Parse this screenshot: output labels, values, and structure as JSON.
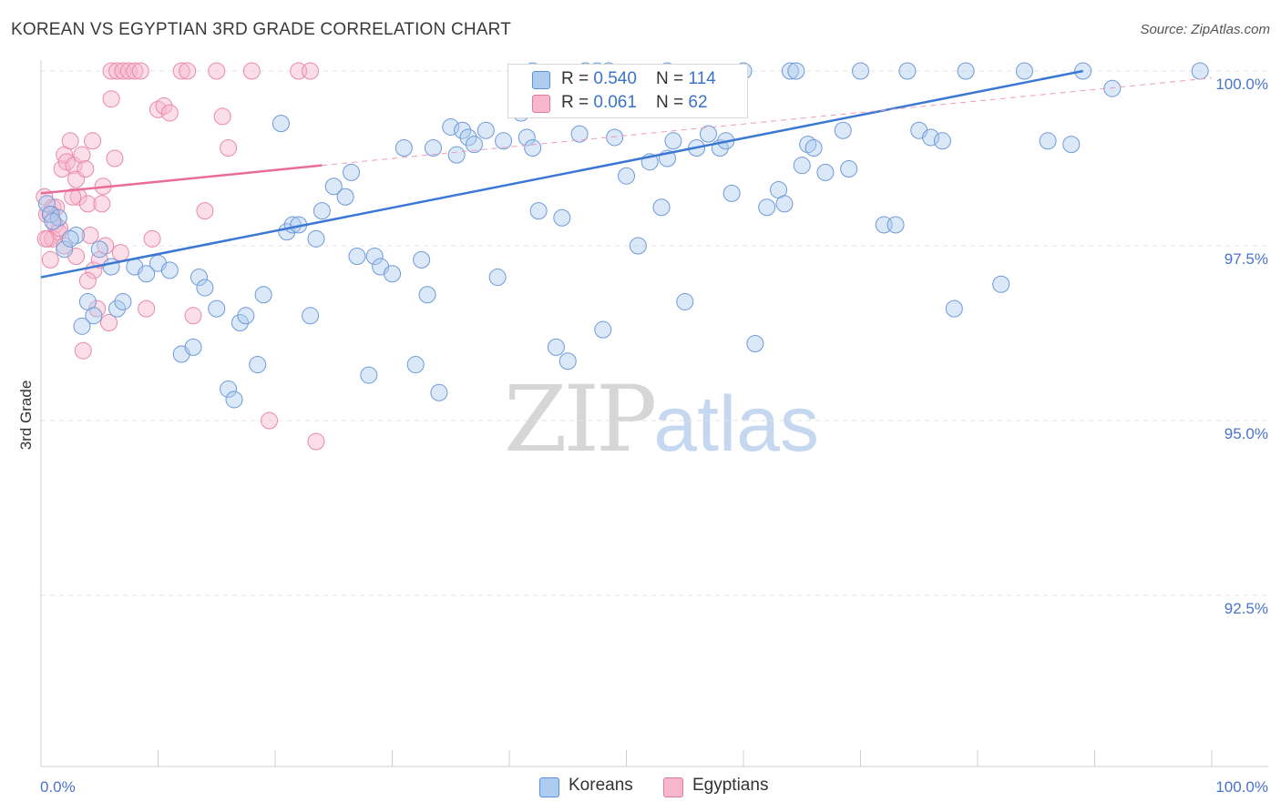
{
  "title": "KOREAN VS EGYPTIAN 3RD GRADE CORRELATION CHART",
  "source": "Source: ZipAtlas.com",
  "watermark": {
    "zip": "ZIP",
    "atlas": "atlas"
  },
  "legend_top": [
    {
      "r_label": "R = ",
      "r_value": "0.540",
      "n_label": "N = ",
      "n_value": "114",
      "color": "#aecbf0"
    },
    {
      "r_label": "R = ",
      "r_value": "0.061",
      "n_label": "N = ",
      "n_value": "62",
      "color": "#f7b6cc"
    }
  ],
  "legend_bottom": [
    {
      "label": "Koreans",
      "color": "#aecbf0"
    },
    {
      "label": "Egyptians",
      "color": "#f7b6cc"
    }
  ],
  "chart_data": {
    "type": "scatter",
    "title": "KOREAN VS EGYPTIAN 3RD GRADE CORRELATION CHART",
    "xlabel": "",
    "ylabel": "3rd Grade",
    "xlim": [
      0,
      100
    ],
    "ylim": [
      90.0,
      100.2
    ],
    "x_tick_labels": [
      "0.0%",
      "100.0%"
    ],
    "y_ticks": [
      92.5,
      95.0,
      97.5,
      100.0
    ],
    "y_tick_labels": [
      "92.5%",
      "95.0%",
      "97.5%",
      "100.0%"
    ],
    "grid": true,
    "legend_position": "bottom",
    "colors": {
      "koreans": "#3a78d4",
      "egyptians": "#e96c98",
      "koreans_fill": "#aecbf0",
      "egyptians_fill": "#f7b6cc"
    },
    "series": [
      {
        "name": "Koreans",
        "trend": {
          "x": [
            0,
            89
          ],
          "y": [
            97.05,
            100.0
          ]
        },
        "points": [
          [
            0.5,
            98.1
          ],
          [
            0.8,
            97.95
          ],
          [
            1.5,
            97.9
          ],
          [
            2.0,
            97.45
          ],
          [
            3.0,
            97.65
          ],
          [
            4.0,
            96.7
          ],
          [
            5.0,
            97.45
          ],
          [
            6.0,
            97.2
          ],
          [
            6.5,
            96.6
          ],
          [
            7.0,
            96.7
          ],
          [
            8.0,
            97.2
          ],
          [
            9.0,
            97.1
          ],
          [
            10.0,
            97.25
          ],
          [
            11.0,
            97.15
          ],
          [
            12.0,
            95.95
          ],
          [
            13.0,
            96.05
          ],
          [
            13.5,
            97.05
          ],
          [
            14.0,
            96.9
          ],
          [
            15.0,
            96.6
          ],
          [
            16.0,
            95.45
          ],
          [
            16.5,
            95.3
          ],
          [
            17.0,
            96.4
          ],
          [
            17.5,
            96.5
          ],
          [
            18.5,
            95.8
          ],
          [
            19.0,
            96.8
          ],
          [
            20.5,
            99.25
          ],
          [
            21.0,
            97.7
          ],
          [
            21.5,
            97.8
          ],
          [
            22.0,
            97.8
          ],
          [
            23.0,
            96.5
          ],
          [
            23.5,
            97.6
          ],
          [
            24.0,
            98.0
          ],
          [
            25.0,
            98.35
          ],
          [
            26.0,
            98.2
          ],
          [
            26.5,
            98.55
          ],
          [
            27.0,
            97.35
          ],
          [
            28.0,
            95.65
          ],
          [
            28.5,
            97.35
          ],
          [
            29.0,
            97.2
          ],
          [
            30.0,
            97.1
          ],
          [
            31.0,
            98.9
          ],
          [
            32.0,
            95.8
          ],
          [
            32.5,
            97.3
          ],
          [
            33.0,
            96.8
          ],
          [
            33.5,
            98.9
          ],
          [
            34.0,
            95.4
          ],
          [
            35.0,
            99.2
          ],
          [
            35.5,
            98.8
          ],
          [
            36.0,
            99.15
          ],
          [
            36.5,
            99.05
          ],
          [
            37.0,
            98.95
          ],
          [
            38.0,
            99.15
          ],
          [
            39.0,
            97.05
          ],
          [
            39.5,
            99.0
          ],
          [
            41.0,
            99.4
          ],
          [
            41.5,
            99.05
          ],
          [
            42.0,
            98.9
          ],
          [
            42.5,
            98.0
          ],
          [
            42.0,
            100.0
          ],
          [
            44.0,
            96.05
          ],
          [
            44.5,
            97.9
          ],
          [
            45.0,
            95.85
          ],
          [
            46.0,
            99.1
          ],
          [
            46.5,
            100.0
          ],
          [
            47.5,
            100.0
          ],
          [
            48.0,
            96.3
          ],
          [
            48.5,
            100.0
          ],
          [
            49.0,
            99.05
          ],
          [
            50.0,
            98.5
          ],
          [
            51.0,
            97.5
          ],
          [
            52.0,
            98.7
          ],
          [
            53.0,
            98.05
          ],
          [
            53.5,
            98.75
          ],
          [
            53.5,
            100.0
          ],
          [
            54.0,
            99.0
          ],
          [
            55.0,
            96.7
          ],
          [
            56.0,
            98.9
          ],
          [
            57.0,
            99.1
          ],
          [
            58.0,
            98.9
          ],
          [
            58.5,
            99.0
          ],
          [
            59.0,
            98.25
          ],
          [
            60.0,
            100.0
          ],
          [
            61.0,
            96.1
          ],
          [
            62.0,
            98.05
          ],
          [
            63.0,
            98.3
          ],
          [
            63.5,
            98.1
          ],
          [
            64.0,
            100.0
          ],
          [
            64.5,
            100.0
          ],
          [
            65.0,
            98.65
          ],
          [
            65.5,
            98.95
          ],
          [
            66.0,
            98.9
          ],
          [
            67.0,
            98.55
          ],
          [
            68.5,
            99.15
          ],
          [
            69.0,
            98.6
          ],
          [
            70.0,
            100.0
          ],
          [
            72.0,
            97.8
          ],
          [
            73.0,
            97.8
          ],
          [
            74.0,
            100.0
          ],
          [
            75.0,
            99.15
          ],
          [
            76.0,
            99.05
          ],
          [
            77.0,
            99.0
          ],
          [
            78.0,
            96.6
          ],
          [
            79.0,
            100.0
          ],
          [
            82.0,
            96.95
          ],
          [
            84.0,
            100.0
          ],
          [
            86.0,
            99.0
          ],
          [
            88.0,
            98.95
          ],
          [
            89.0,
            100.0
          ],
          [
            91.5,
            99.75
          ],
          [
            99.0,
            100.0
          ],
          [
            1.0,
            97.85
          ],
          [
            2.5,
            97.6
          ],
          [
            4.5,
            96.5
          ],
          [
            3.5,
            96.35
          ]
        ]
      },
      {
        "name": "Egyptians",
        "trend": {
          "x": [
            0,
            24
          ],
          "y": [
            98.25,
            98.65
          ]
        },
        "trend_extended": {
          "x": [
            24,
            100
          ],
          "y": [
            98.65,
            99.9
          ]
        },
        "points": [
          [
            0.3,
            98.2
          ],
          [
            0.5,
            97.95
          ],
          [
            0.6,
            97.6
          ],
          [
            0.8,
            97.3
          ],
          [
            1.0,
            98.05
          ],
          [
            1.2,
            97.8
          ],
          [
            1.5,
            97.7
          ],
          [
            1.8,
            98.6
          ],
          [
            2.0,
            98.8
          ],
          [
            2.2,
            98.7
          ],
          [
            2.5,
            99.0
          ],
          [
            2.8,
            98.65
          ],
          [
            3.0,
            98.45
          ],
          [
            3.2,
            98.2
          ],
          [
            3.5,
            98.8
          ],
          [
            3.8,
            98.6
          ],
          [
            4.0,
            98.1
          ],
          [
            4.2,
            97.65
          ],
          [
            4.5,
            97.15
          ],
          [
            4.8,
            96.6
          ],
          [
            5.0,
            97.3
          ],
          [
            5.3,
            98.35
          ],
          [
            5.5,
            97.5
          ],
          [
            5.8,
            96.4
          ],
          [
            6.0,
            100.0
          ],
          [
            6.3,
            98.75
          ],
          [
            6.5,
            100.0
          ],
          [
            6.8,
            97.4
          ],
          [
            7.0,
            100.0
          ],
          [
            7.5,
            100.0
          ],
          [
            8.0,
            100.0
          ],
          [
            8.5,
            100.0
          ],
          [
            9.0,
            96.6
          ],
          [
            9.5,
            97.6
          ],
          [
            10.0,
            99.45
          ],
          [
            10.5,
            99.5
          ],
          [
            11.0,
            99.4
          ],
          [
            12.0,
            100.0
          ],
          [
            12.5,
            100.0
          ],
          [
            13.0,
            96.5
          ],
          [
            14.0,
            98.0
          ],
          [
            15.0,
            100.0
          ],
          [
            15.5,
            99.35
          ],
          [
            16.0,
            98.9
          ],
          [
            18.0,
            100.0
          ],
          [
            19.5,
            95.0
          ],
          [
            22.0,
            100.0
          ],
          [
            23.0,
            100.0
          ],
          [
            23.5,
            94.7
          ],
          [
            1.0,
            97.6
          ],
          [
            2.0,
            97.5
          ],
          [
            3.0,
            97.35
          ],
          [
            4.0,
            97.0
          ],
          [
            0.4,
            97.6
          ],
          [
            1.3,
            98.05
          ],
          [
            2.7,
            98.2
          ],
          [
            3.6,
            96.0
          ],
          [
            5.2,
            98.1
          ],
          [
            0.9,
            97.95
          ],
          [
            4.4,
            99.0
          ],
          [
            6.0,
            99.6
          ],
          [
            1.6,
            97.75
          ]
        ]
      }
    ]
  }
}
